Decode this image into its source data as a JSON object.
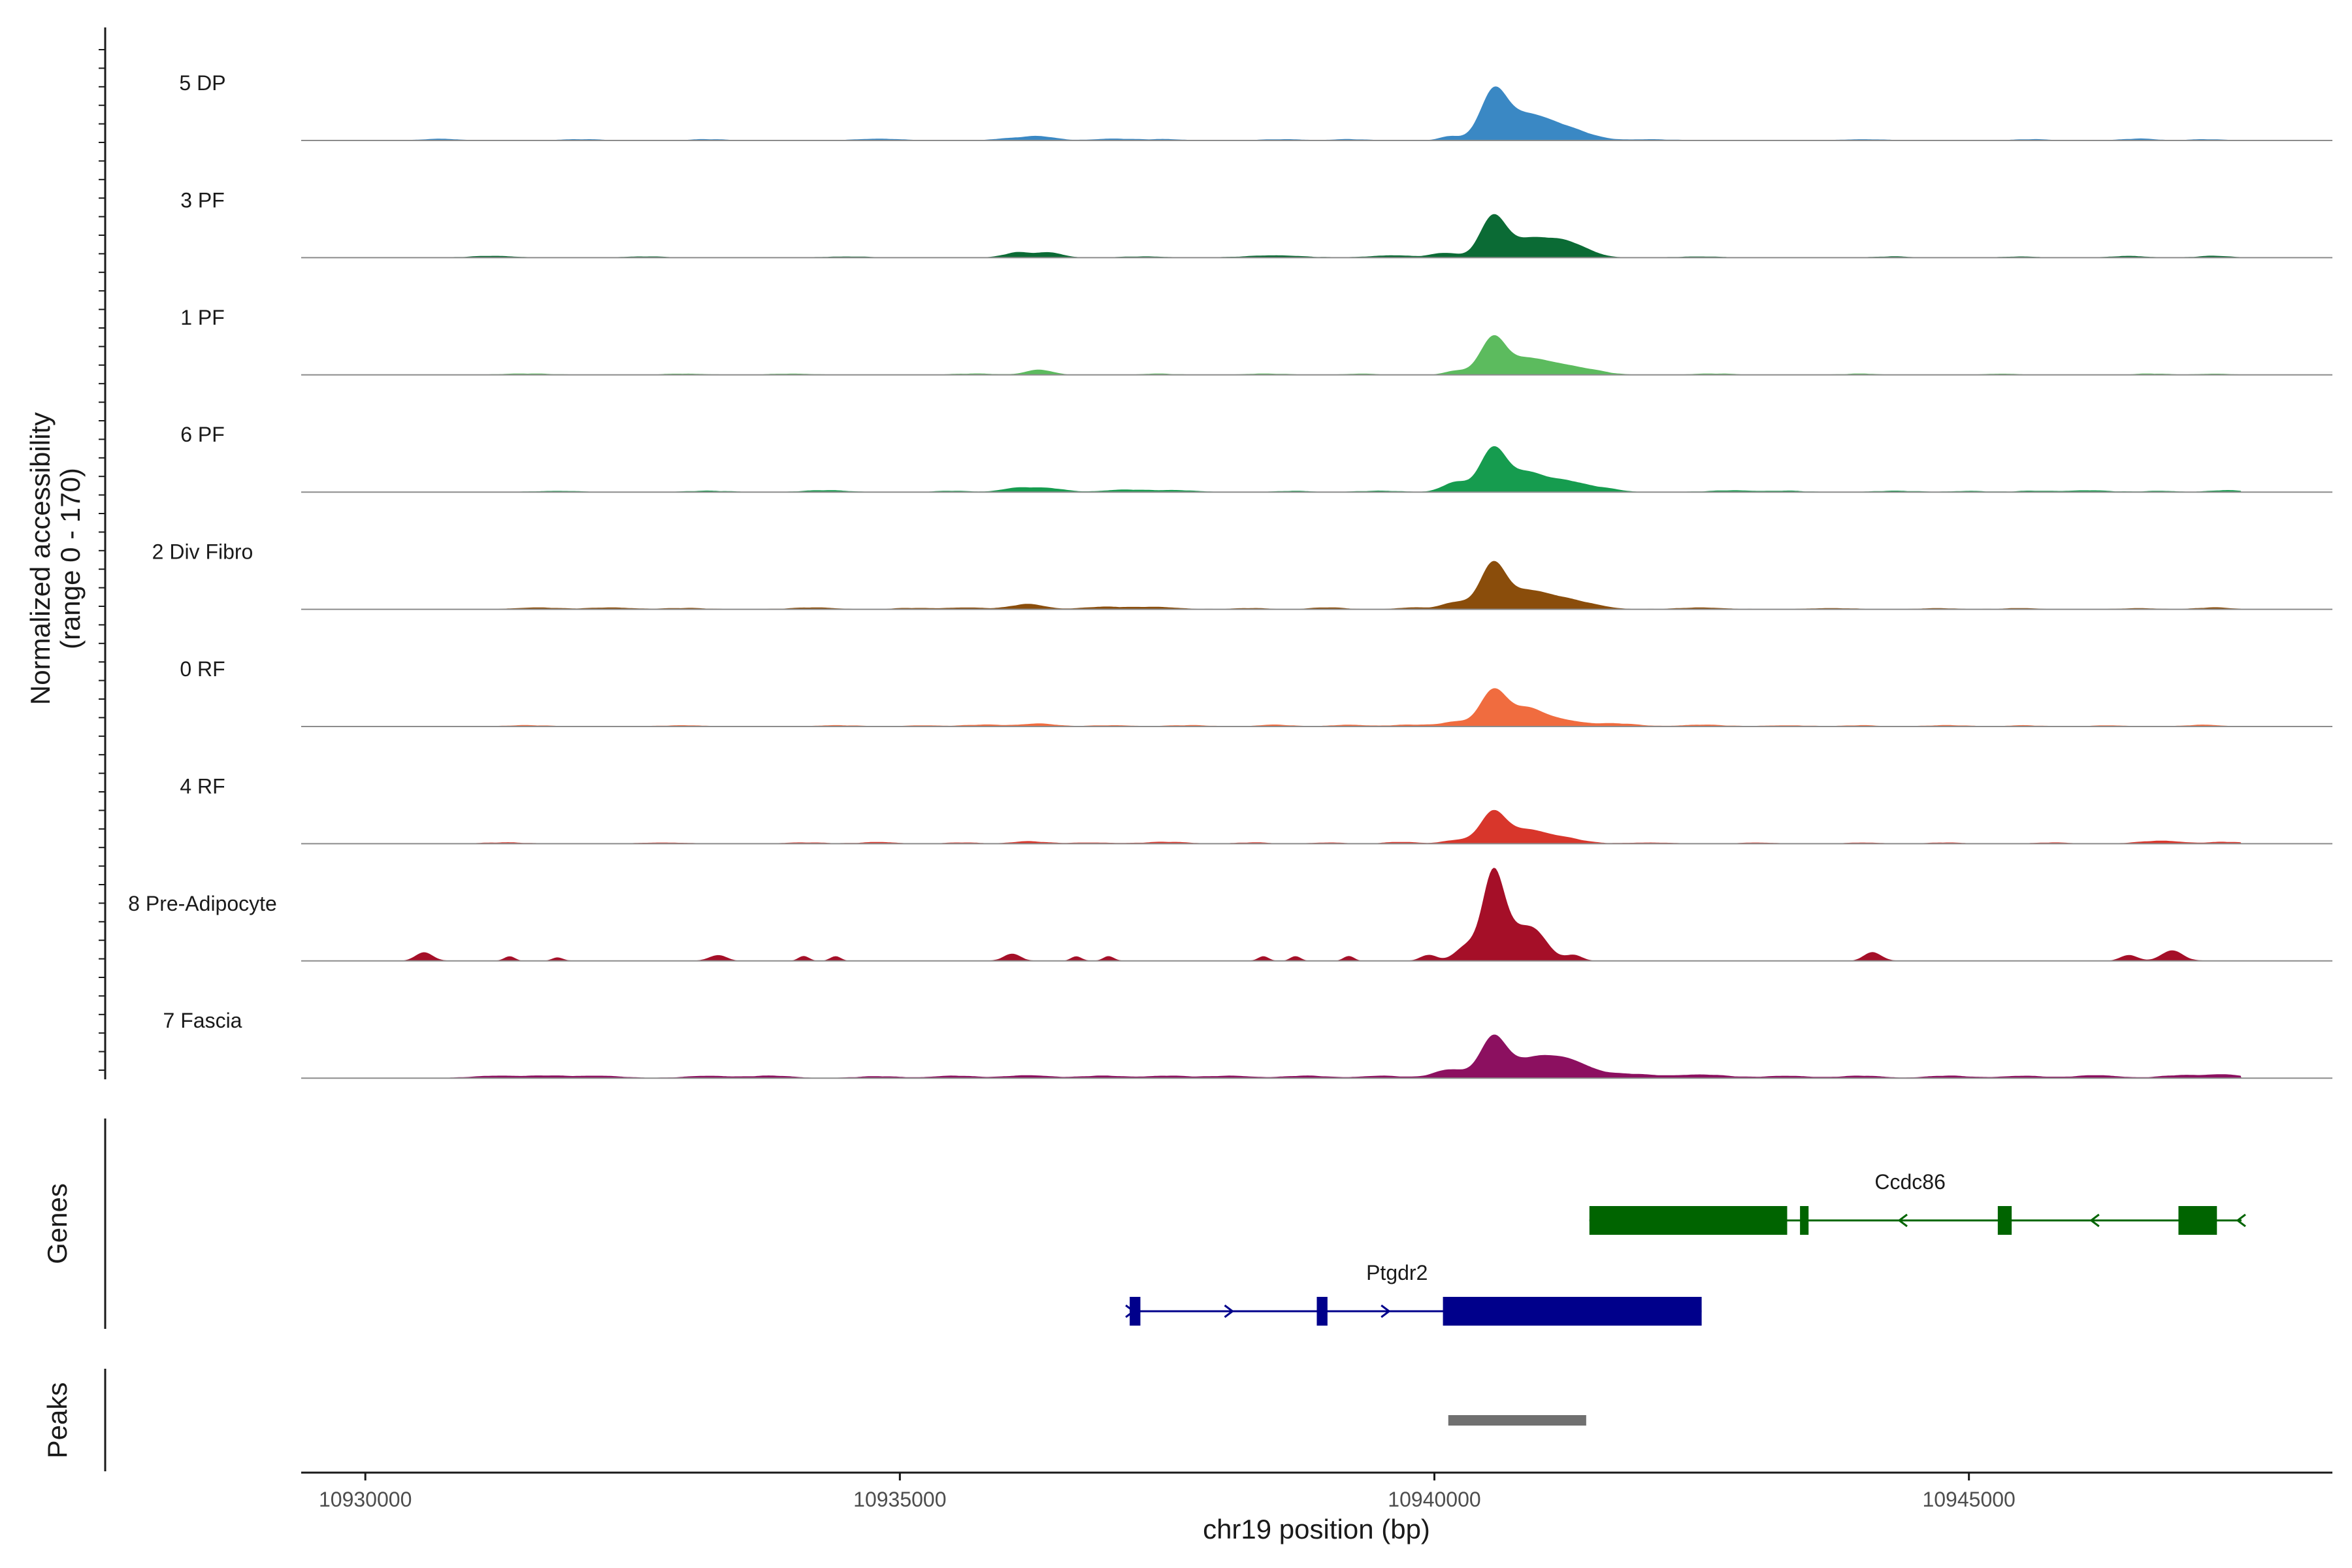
{
  "chart_data": {
    "type": "area",
    "subtype": "genome-browser coverage plot",
    "ylabel": "Normalized accessibility",
    "ylabel_range": "(range 0 - 170)",
    "ylim": [
      0,
      170
    ],
    "xlabel": "chr19 position (bp)",
    "xlim": [
      10929400,
      10948400
    ],
    "x_ticks": [
      10930000,
      10935000,
      10940000,
      10945000
    ],
    "x_tick_labels": [
      "10930000",
      "10935000",
      "10940000",
      "10945000"
    ],
    "genes_panel_title": "Genes",
    "peaks_panel_title": "Peaks",
    "tracks": [
      {
        "name": "5 DP",
        "color": "#3A88C4",
        "bumps": [
          [
            10930700,
            3,
            150
          ],
          [
            10932000,
            2,
            200
          ],
          [
            10933200,
            2,
            150
          ],
          [
            10934800,
            3,
            200
          ],
          [
            10936000,
            3,
            150
          ],
          [
            10936300,
            7,
            150
          ],
          [
            10937000,
            3,
            200
          ],
          [
            10937500,
            2,
            150
          ],
          [
            10938600,
            2,
            200
          ],
          [
            10939200,
            2,
            150
          ],
          [
            10940150,
            7,
            100
          ],
          [
            10940550,
            75,
            120
          ],
          [
            10940800,
            28,
            200
          ],
          [
            10941000,
            22,
            250
          ],
          [
            10941300,
            10,
            200
          ],
          [
            10942000,
            2,
            200
          ],
          [
            10944000,
            2,
            200
          ],
          [
            10945600,
            2,
            150
          ],
          [
            10946600,
            3,
            150
          ],
          [
            10947200,
            2,
            150
          ]
        ]
      },
      {
        "name": "3 PF",
        "color": "#0B6B35",
        "bumps": [
          [
            10931200,
            3,
            200
          ],
          [
            10932600,
            2,
            200
          ],
          [
            10934500,
            2,
            200
          ],
          [
            10936100,
            9,
            120
          ],
          [
            10936400,
            9,
            120
          ],
          [
            10937300,
            2,
            200
          ],
          [
            10938500,
            4,
            250
          ],
          [
            10939600,
            4,
            200
          ],
          [
            10940100,
            8,
            120
          ],
          [
            10940550,
            72,
            120
          ],
          [
            10940850,
            25,
            150
          ],
          [
            10941150,
            28,
            180
          ],
          [
            10941400,
            8,
            150
          ],
          [
            10942500,
            2,
            200
          ],
          [
            10944300,
            2,
            150
          ],
          [
            10945500,
            2,
            150
          ],
          [
            10946500,
            3,
            150
          ],
          [
            10947300,
            3,
            150
          ]
        ]
      },
      {
        "name": "1 PF",
        "color": "#5CBB5E",
        "bumps": [
          [
            10931500,
            2,
            250
          ],
          [
            10933000,
            2,
            200
          ],
          [
            10934000,
            2,
            200
          ],
          [
            10935700,
            2,
            200
          ],
          [
            10936300,
            9,
            120
          ],
          [
            10937400,
            2,
            150
          ],
          [
            10938400,
            2,
            200
          ],
          [
            10939300,
            2,
            150
          ],
          [
            10940200,
            7,
            100
          ],
          [
            10940550,
            65,
            120
          ],
          [
            10940850,
            22,
            150
          ],
          [
            10941150,
            18,
            200
          ],
          [
            10941500,
            5,
            150
          ],
          [
            10942600,
            2,
            200
          ],
          [
            10944000,
            2,
            150
          ],
          [
            10945300,
            2,
            150
          ],
          [
            10946700,
            2,
            150
          ],
          [
            10947300,
            2,
            150
          ]
        ]
      },
      {
        "name": "6 PF",
        "color": "#169C4F",
        "bumps": [
          [
            10931800,
            2,
            200
          ],
          [
            10933200,
            2,
            200
          ],
          [
            10934300,
            3,
            200
          ],
          [
            10935500,
            2,
            150
          ],
          [
            10936100,
            7,
            150
          ],
          [
            10936400,
            6,
            150
          ],
          [
            10937100,
            4,
            200
          ],
          [
            10937600,
            3,
            200
          ],
          [
            10938700,
            2,
            150
          ],
          [
            10939500,
            2,
            200
          ],
          [
            10940200,
            17,
            120
          ],
          [
            10940550,
            75,
            120
          ],
          [
            10940850,
            30,
            150
          ],
          [
            10941200,
            20,
            200
          ],
          [
            10941600,
            5,
            150
          ],
          [
            10942800,
            3,
            200
          ],
          [
            10943300,
            2,
            150
          ],
          [
            10944300,
            2,
            200
          ],
          [
            10945000,
            2,
            150
          ],
          [
            10945600,
            2,
            150
          ],
          [
            10946100,
            3,
            200
          ],
          [
            10946800,
            2,
            150
          ],
          [
            10947400,
            3,
            150
          ]
        ]
      },
      {
        "name": "2 Div Fibro",
        "color": "#8A4D0B",
        "bumps": [
          [
            10931600,
            3,
            200
          ],
          [
            10932300,
            3,
            200
          ],
          [
            10933000,
            2,
            200
          ],
          [
            10934200,
            3,
            200
          ],
          [
            10935100,
            2,
            150
          ],
          [
            10935600,
            3,
            200
          ],
          [
            10936200,
            9,
            150
          ],
          [
            10936900,
            4,
            200
          ],
          [
            10937400,
            4,
            200
          ],
          [
            10938300,
            2,
            150
          ],
          [
            10939000,
            3,
            150
          ],
          [
            10939800,
            3,
            150
          ],
          [
            10940200,
            12,
            120
          ],
          [
            10940550,
            80,
            120
          ],
          [
            10940850,
            25,
            150
          ],
          [
            10941150,
            20,
            200
          ],
          [
            10941500,
            5,
            150
          ],
          [
            10942500,
            3,
            200
          ],
          [
            10943700,
            2,
            200
          ],
          [
            10944700,
            2,
            150
          ],
          [
            10945500,
            2,
            150
          ],
          [
            10946600,
            2,
            150
          ],
          [
            10947300,
            3,
            150
          ]
        ]
      },
      {
        "name": "0 RF",
        "color": "#F06C3F",
        "bumps": [
          [
            10931500,
            2,
            200
          ],
          [
            10933000,
            2,
            200
          ],
          [
            10934400,
            2,
            200
          ],
          [
            10935200,
            2,
            150
          ],
          [
            10935800,
            3,
            200
          ],
          [
            10936300,
            5,
            150
          ],
          [
            10937000,
            2,
            200
          ],
          [
            10937700,
            2,
            200
          ],
          [
            10938500,
            3,
            150
          ],
          [
            10939200,
            3,
            150
          ],
          [
            10939800,
            3,
            200
          ],
          [
            10940200,
            8,
            120
          ],
          [
            10940550,
            62,
            120
          ],
          [
            10940850,
            28,
            150
          ],
          [
            10941150,
            12,
            200
          ],
          [
            10941700,
            5,
            200
          ],
          [
            10942500,
            3,
            200
          ],
          [
            10943300,
            2,
            200
          ],
          [
            10944000,
            2,
            150
          ],
          [
            10944800,
            2,
            200
          ],
          [
            10945500,
            2,
            150
          ],
          [
            10946300,
            2,
            150
          ],
          [
            10947200,
            3,
            150
          ]
        ]
      },
      {
        "name": "4 RF",
        "color": "#D8362B",
        "bumps": [
          [
            10931300,
            2,
            200
          ],
          [
            10932800,
            2,
            200
          ],
          [
            10934100,
            2,
            200
          ],
          [
            10934800,
            3,
            150
          ],
          [
            10935600,
            2,
            150
          ],
          [
            10936200,
            4,
            150
          ],
          [
            10936800,
            2,
            200
          ],
          [
            10937500,
            3,
            200
          ],
          [
            10938300,
            2,
            150
          ],
          [
            10939000,
            2,
            150
          ],
          [
            10939700,
            3,
            150
          ],
          [
            10940200,
            6,
            120
          ],
          [
            10940550,
            55,
            120
          ],
          [
            10940850,
            20,
            150
          ],
          [
            10941150,
            12,
            200
          ],
          [
            10942000,
            2,
            200
          ],
          [
            10943000,
            2,
            150
          ],
          [
            10944000,
            2,
            150
          ],
          [
            10944800,
            2,
            150
          ],
          [
            10945800,
            2,
            150
          ],
          [
            10946800,
            5,
            200
          ],
          [
            10947400,
            3,
            150
          ]
        ]
      },
      {
        "name": "8 Pre-Adipocyte",
        "color": "#A50F28",
        "bumps": [
          [
            10930550,
            15,
            80
          ],
          [
            10931350,
            8,
            50
          ],
          [
            10931800,
            6,
            50
          ],
          [
            10933300,
            10,
            80
          ],
          [
            10934100,
            8,
            50
          ],
          [
            10934400,
            8,
            50
          ],
          [
            10936050,
            12,
            80
          ],
          [
            10936650,
            8,
            50
          ],
          [
            10936950,
            8,
            50
          ],
          [
            10938400,
            8,
            50
          ],
          [
            10938700,
            8,
            50
          ],
          [
            10939200,
            8,
            50
          ],
          [
            10939950,
            10,
            80
          ],
          [
            10940300,
            25,
            100
          ],
          [
            10940550,
            150,
            100
          ],
          [
            10940750,
            40,
            120
          ],
          [
            10940950,
            45,
            120
          ],
          [
            10941300,
            10,
            80
          ],
          [
            10944100,
            15,
            80
          ],
          [
            10946500,
            10,
            80
          ],
          [
            10946900,
            18,
            100
          ]
        ]
      },
      {
        "name": "7 Fascia",
        "color": "#8C1060",
        "bumps": [
          [
            10931200,
            4,
            200
          ],
          [
            10931700,
            4,
            200
          ],
          [
            10932200,
            4,
            200
          ],
          [
            10933200,
            4,
            200
          ],
          [
            10933800,
            4,
            200
          ],
          [
            10934800,
            3,
            200
          ],
          [
            10935500,
            4,
            200
          ],
          [
            10936200,
            5,
            200
          ],
          [
            10936900,
            4,
            200
          ],
          [
            10937500,
            4,
            200
          ],
          [
            10938100,
            4,
            200
          ],
          [
            10938800,
            4,
            200
          ],
          [
            10939500,
            4,
            200
          ],
          [
            10940150,
            15,
            150
          ],
          [
            10940550,
            68,
            120
          ],
          [
            10940900,
            30,
            200
          ],
          [
            10941250,
            28,
            200
          ],
          [
            10941800,
            7,
            250
          ],
          [
            10942500,
            6,
            250
          ],
          [
            10943300,
            4,
            200
          ],
          [
            10944000,
            4,
            200
          ],
          [
            10944800,
            4,
            200
          ],
          [
            10945500,
            4,
            200
          ],
          [
            10946200,
            5,
            200
          ],
          [
            10947000,
            5,
            200
          ],
          [
            10947400,
            6,
            150
          ]
        ]
      }
    ],
    "genes": [
      {
        "name": "Ptgdr2",
        "strand": "+",
        "color": "#00008B",
        "start": 10937150,
        "end": 10942500,
        "exons": [
          [
            10937150,
            10937250
          ],
          [
            10938900,
            10939000
          ],
          [
            10940080,
            10942500
          ]
        ]
      },
      {
        "name": "Ccdc86",
        "strand": "-",
        "color": "#006400",
        "start": 10941450,
        "end": 10947550,
        "exons": [
          [
            10941450,
            10943300
          ],
          [
            10943420,
            10943500
          ],
          [
            10945270,
            10945400
          ],
          [
            10946960,
            10947320
          ]
        ]
      }
    ],
    "peaks": [
      {
        "start": 10940130,
        "end": 10941420,
        "color": "#707070"
      }
    ]
  }
}
